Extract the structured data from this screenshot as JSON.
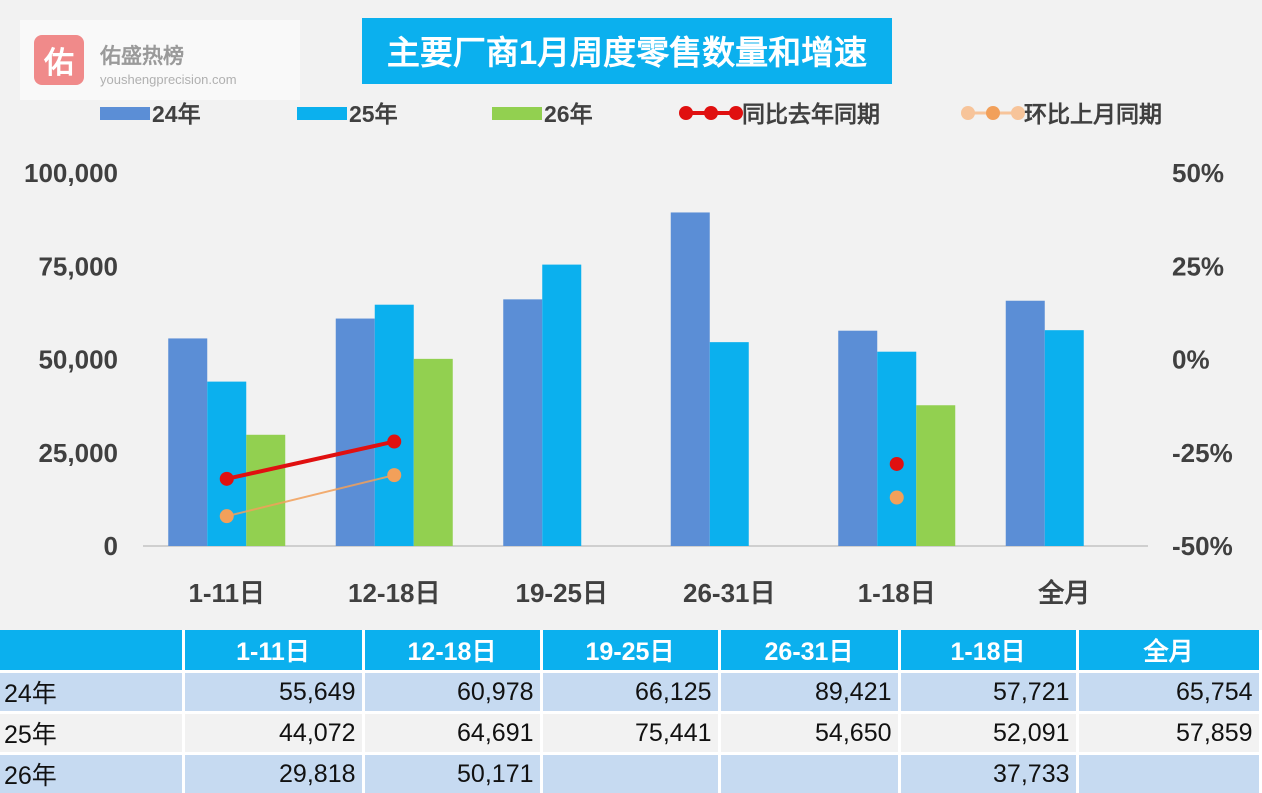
{
  "watermark": {
    "badge": "佑",
    "name": "佑盛热榜",
    "url": "youshengprecision.com",
    "icon": "badge-icon"
  },
  "chart_data": {
    "type": "bar",
    "title": "主要厂商1月周度零售数量和增速",
    "categories": [
      "1-11日",
      "12-18日",
      "19-25日",
      "26-31日",
      "1-18日",
      "全月"
    ],
    "series": [
      {
        "name": "24年",
        "kind": "bar",
        "color": "#5b8ed6",
        "values": [
          55649,
          60978,
          66125,
          89421,
          57721,
          65754
        ]
      },
      {
        "name": "25年",
        "kind": "bar",
        "color": "#0bb0ee",
        "values": [
          44072,
          64691,
          75441,
          54650,
          52091,
          57859
        ]
      },
      {
        "name": "26年",
        "kind": "bar",
        "color": "#92d050",
        "values": [
          29818,
          50171,
          null,
          null,
          37733,
          null
        ]
      },
      {
        "name": "同比去年同期",
        "kind": "line",
        "axis": "right",
        "color": "#e01010",
        "values": [
          -32,
          -22,
          null,
          null,
          -28,
          null
        ]
      },
      {
        "name": "环比上月同期",
        "kind": "line",
        "axis": "right",
        "color": "#f2a05a",
        "values": [
          -42,
          -31,
          null,
          null,
          -37,
          null
        ]
      }
    ],
    "y_left": {
      "min": 0,
      "max": 100000,
      "ticks": [
        "0",
        "25,000",
        "50,000",
        "75,000",
        "100,000"
      ]
    },
    "y_right": {
      "min": -50,
      "max": 50,
      "ticks": [
        "-50%",
        "-25%",
        "0%",
        "25%",
        "50%"
      ]
    },
    "grid": false,
    "legend_position": "top"
  },
  "table": {
    "header": [
      "",
      "1-11日",
      "12-18日",
      "19-25日",
      "26-31日",
      "1-18日",
      "全月"
    ],
    "rows": [
      {
        "label": "24年",
        "cells": [
          "55,649",
          "60,978",
          "66,125",
          "89,421",
          "57,721",
          "65,754"
        ]
      },
      {
        "label": "25年",
        "cells": [
          "44,072",
          "64,691",
          "75,441",
          "54,650",
          "52,091",
          "57,859"
        ]
      },
      {
        "label": "26年",
        "cells": [
          "29,818",
          "50,171",
          "",
          "",
          "37,733",
          ""
        ]
      }
    ]
  }
}
